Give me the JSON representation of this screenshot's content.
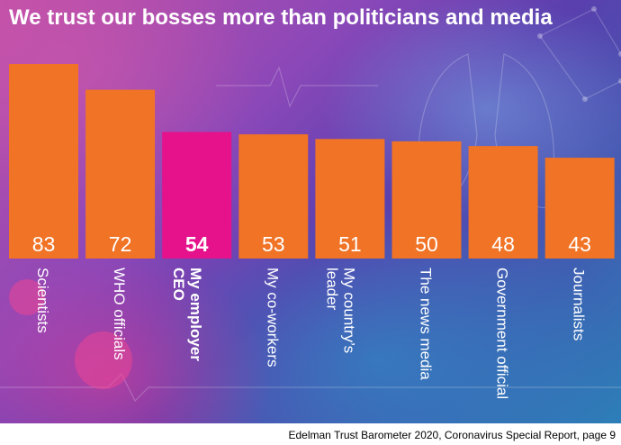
{
  "title": "We trust our bosses more than politicians and media",
  "source": "Edelman Trust Barometer 2020, Coronavirus Special Report, page 9",
  "colors": {
    "bar": "#f07326",
    "highlight": "#e5128c",
    "text": "#ffffff"
  },
  "chart_data": {
    "type": "bar",
    "categories": [
      [
        "Scientists"
      ],
      [
        "WHO officials"
      ],
      [
        "My employer",
        "CEO"
      ],
      [
        "My co-workers"
      ],
      [
        "My country’s",
        "leader"
      ],
      [
        "The news media"
      ],
      [
        "Government official"
      ],
      [
        "Journalists"
      ]
    ],
    "values": [
      83,
      72,
      54,
      53,
      51,
      50,
      48,
      43
    ],
    "highlight_index": 2,
    "ylim": [
      0,
      83
    ],
    "grid": false,
    "legend": "none"
  }
}
